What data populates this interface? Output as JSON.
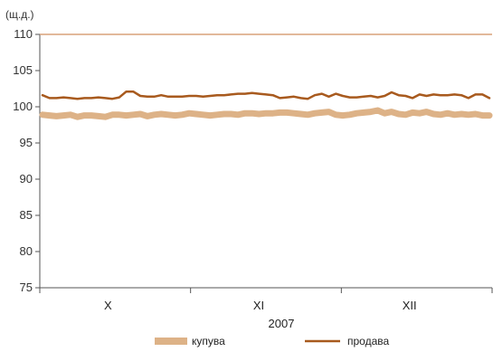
{
  "chart_data": {
    "type": "line",
    "unit_label": "(щ.д.)",
    "title": "",
    "xlabel": "2007",
    "ylabel": "",
    "ylim": [
      75,
      110
    ],
    "yticks": [
      75,
      80,
      85,
      90,
      95,
      100,
      105,
      110
    ],
    "months": [
      "X",
      "XI",
      "XII"
    ],
    "grid": false,
    "legend_position": "bottom",
    "series": [
      {
        "name": "купува",
        "color": "#ddb287",
        "values": [
          98.9,
          98.8,
          98.7,
          98.8,
          98.9,
          98.6,
          98.8,
          98.8,
          98.7,
          98.6,
          98.9,
          98.9,
          98.8,
          98.9,
          99.0,
          98.7,
          98.9,
          99.0,
          98.9,
          98.8,
          98.9,
          99.1,
          99.0,
          98.9,
          98.8,
          98.9,
          99.0,
          99.0,
          98.9,
          99.1,
          99.1,
          99.0,
          99.1,
          99.1,
          99.2,
          99.2,
          99.1,
          99.0,
          98.9,
          99.1,
          99.2,
          99.3,
          98.9,
          98.8,
          98.9,
          99.1,
          99.2,
          99.3,
          99.5,
          99.1,
          99.3,
          99.0,
          98.9,
          99.2,
          99.1,
          99.3,
          99.0,
          98.9,
          99.1,
          98.9,
          99.0,
          98.9,
          99.0,
          98.8,
          98.8
        ]
      },
      {
        "name": "продава",
        "color": "#a85a1e",
        "values": [
          101.6,
          101.2,
          101.2,
          101.3,
          101.2,
          101.1,
          101.2,
          101.2,
          101.3,
          101.2,
          101.1,
          101.3,
          102.1,
          102.1,
          101.5,
          101.4,
          101.4,
          101.6,
          101.4,
          101.4,
          101.4,
          101.5,
          101.5,
          101.4,
          101.5,
          101.6,
          101.6,
          101.7,
          101.8,
          101.8,
          101.9,
          101.8,
          101.7,
          101.6,
          101.2,
          101.3,
          101.4,
          101.2,
          101.1,
          101.6,
          101.8,
          101.4,
          101.8,
          101.5,
          101.3,
          101.3,
          101.4,
          101.5,
          101.3,
          101.5,
          102.0,
          101.6,
          101.5,
          101.2,
          101.7,
          101.5,
          101.7,
          101.6,
          101.6,
          101.7,
          101.6,
          101.2,
          101.7,
          101.7,
          101.2
        ]
      }
    ]
  }
}
